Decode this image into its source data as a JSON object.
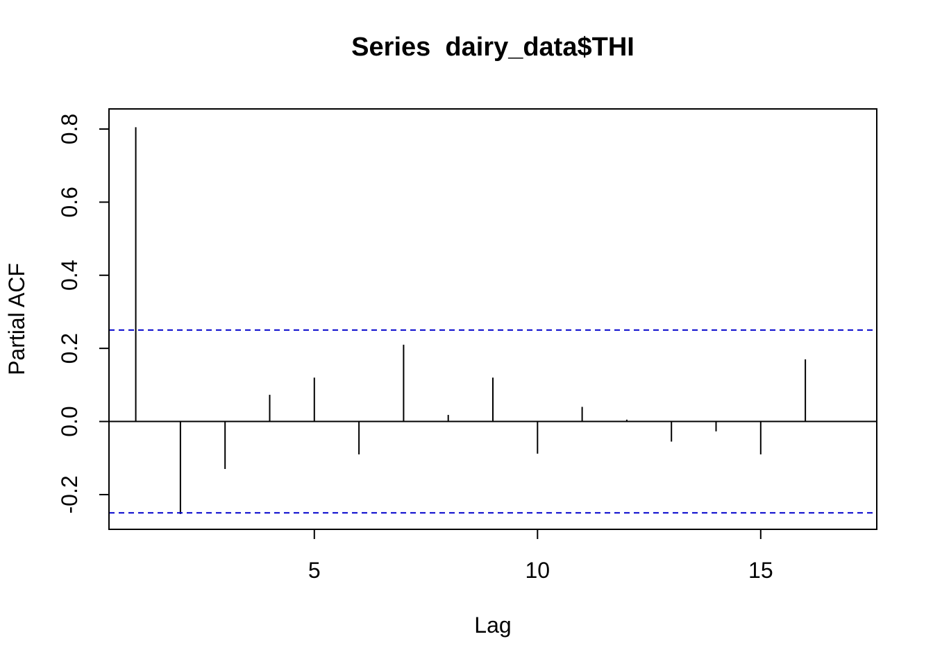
{
  "chart_data": {
    "type": "bar",
    "title": "Series  dairy_data$THI",
    "xlabel": "Lag",
    "ylabel": "Partial ACF",
    "x": [
      1,
      2,
      3,
      4,
      5,
      6,
      7,
      8,
      9,
      10,
      11,
      12,
      13,
      14,
      15,
      16
    ],
    "values": [
      0.805,
      -0.253,
      -0.13,
      0.073,
      0.12,
      -0.09,
      0.21,
      0.018,
      0.12,
      -0.088,
      0.04,
      0.005,
      -0.055,
      -0.027,
      -0.09,
      0.17
    ],
    "xlim": [
      0.4,
      17.6
    ],
    "ylim": [
      -0.295,
      0.855
    ],
    "x_ticks": [
      5,
      10,
      15
    ],
    "x_tick_labels": [
      "5",
      "10",
      "15"
    ],
    "y_ticks": [
      -0.2,
      0.0,
      0.2,
      0.4,
      0.6,
      0.8
    ],
    "y_tick_labels": [
      "-0.2",
      "0.0",
      "0.2",
      "0.4",
      "0.6",
      "0.8"
    ],
    "zero_line": 0,
    "confidence_bounds": [
      0.25,
      -0.25
    ],
    "colors": {
      "bars": "#000000",
      "zero_line": "#000000",
      "confidence": "#0000CC",
      "frame": "#000000",
      "background": "#FFFFFF"
    }
  }
}
